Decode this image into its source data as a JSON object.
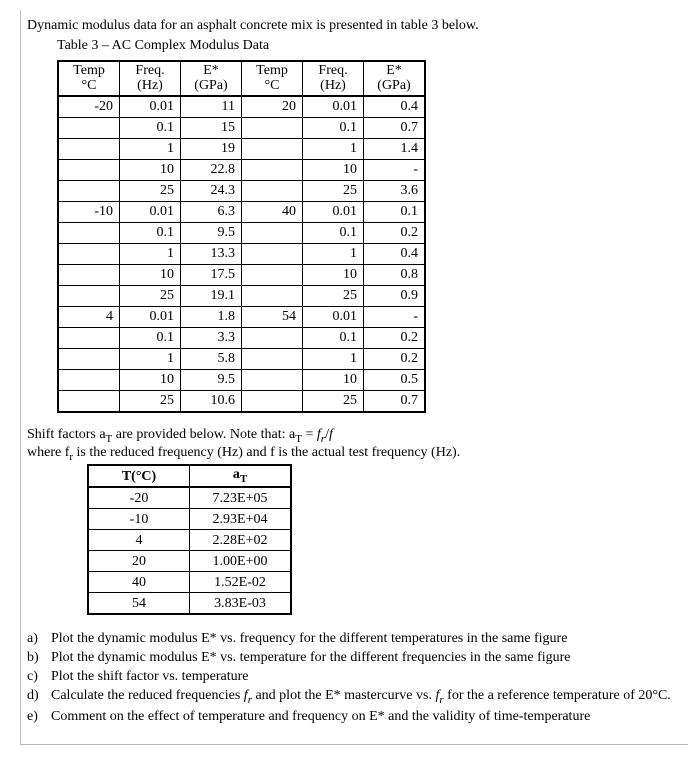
{
  "intro": "Dynamic modulus data for an asphalt concrete mix is presented in table 3 below.",
  "table_title": "Table 3 – AC Complex Modulus Data",
  "modulus_table": {
    "headers": {
      "temp": "Temp",
      "temp_unit": "°C",
      "freq": "Freq.",
      "freq_unit": "(Hz)",
      "estar": "E*",
      "estar_unit": "(GPa)"
    },
    "left": [
      {
        "temp": "-20",
        "rows": [
          [
            "0.01",
            "11"
          ],
          [
            "0.1",
            "15"
          ],
          [
            "1",
            "19"
          ],
          [
            "10",
            "22.8"
          ],
          [
            "25",
            "24.3"
          ]
        ]
      },
      {
        "temp": "-10",
        "rows": [
          [
            "0.01",
            "6.3"
          ],
          [
            "0.1",
            "9.5"
          ],
          [
            "1",
            "13.3"
          ],
          [
            "10",
            "17.5"
          ],
          [
            "25",
            "19.1"
          ]
        ]
      },
      {
        "temp": "4",
        "rows": [
          [
            "0.01",
            "1.8"
          ],
          [
            "0.1",
            "3.3"
          ],
          [
            "1",
            "5.8"
          ],
          [
            "10",
            "9.5"
          ],
          [
            "25",
            "10.6"
          ]
        ]
      }
    ],
    "right": [
      {
        "temp": "20",
        "rows": [
          [
            "0.01",
            "0.4"
          ],
          [
            "0.1",
            "0.7"
          ],
          [
            "1",
            "1.4"
          ],
          [
            "10",
            "-"
          ],
          [
            "25",
            "3.6"
          ]
        ]
      },
      {
        "temp": "40",
        "rows": [
          [
            "0.01",
            "0.1"
          ],
          [
            "0.1",
            "0.2"
          ],
          [
            "1",
            "0.4"
          ],
          [
            "10",
            "0.8"
          ],
          [
            "25",
            "0.9"
          ]
        ]
      },
      {
        "temp": "54",
        "rows": [
          [
            "0.01",
            "-"
          ],
          [
            "0.1",
            "0.2"
          ],
          [
            "1",
            "0.2"
          ],
          [
            "10",
            "0.5"
          ],
          [
            "25",
            "0.7"
          ]
        ]
      }
    ]
  },
  "shift_text_line1_a": "Shift factors a",
  "shift_text_line1_b": " are provided below. Note that: a",
  "shift_text_line1_c": " = ",
  "shift_text_line1_d": "f",
  "shift_text_line1_e": "/",
  "shift_text_line1_f": "f",
  "shift_text_line2_a": "where f",
  "shift_text_line2_b": " is the reduced frequency (Hz) and f is the actual test frequency (Hz).",
  "sub_T": "T",
  "sub_r": "r",
  "shift_table": {
    "head_T": "T(°C)",
    "head_a": "a",
    "rows": [
      [
        "-20",
        "7.23E+05"
      ],
      [
        "-10",
        "2.93E+04"
      ],
      [
        "4",
        "2.28E+02"
      ],
      [
        "20",
        "1.00E+00"
      ],
      [
        "40",
        "1.52E-02"
      ],
      [
        "54",
        "3.83E-03"
      ]
    ]
  },
  "questions": [
    {
      "lbl": "a)",
      "txt": "Plot the dynamic modulus E* vs. frequency for the different temperatures in the same figure"
    },
    {
      "lbl": "b)",
      "txt": "Plot the dynamic modulus E* vs. temperature for the different frequencies in the same figure"
    },
    {
      "lbl": "c)",
      "txt": "Plot the shift factor vs. temperature"
    },
    {
      "lbl": "d)",
      "txt_a": "Calculate the reduced frequencies ",
      "txt_b": "f",
      "txt_c": " and plot the E* mastercurve vs. ",
      "txt_d": "f",
      "txt_e": " for the a reference temperature of 20°C."
    },
    {
      "lbl": "e)",
      "txt": "Comment on the effect of temperature and frequency on E* and the validity of time-temperature"
    }
  ]
}
